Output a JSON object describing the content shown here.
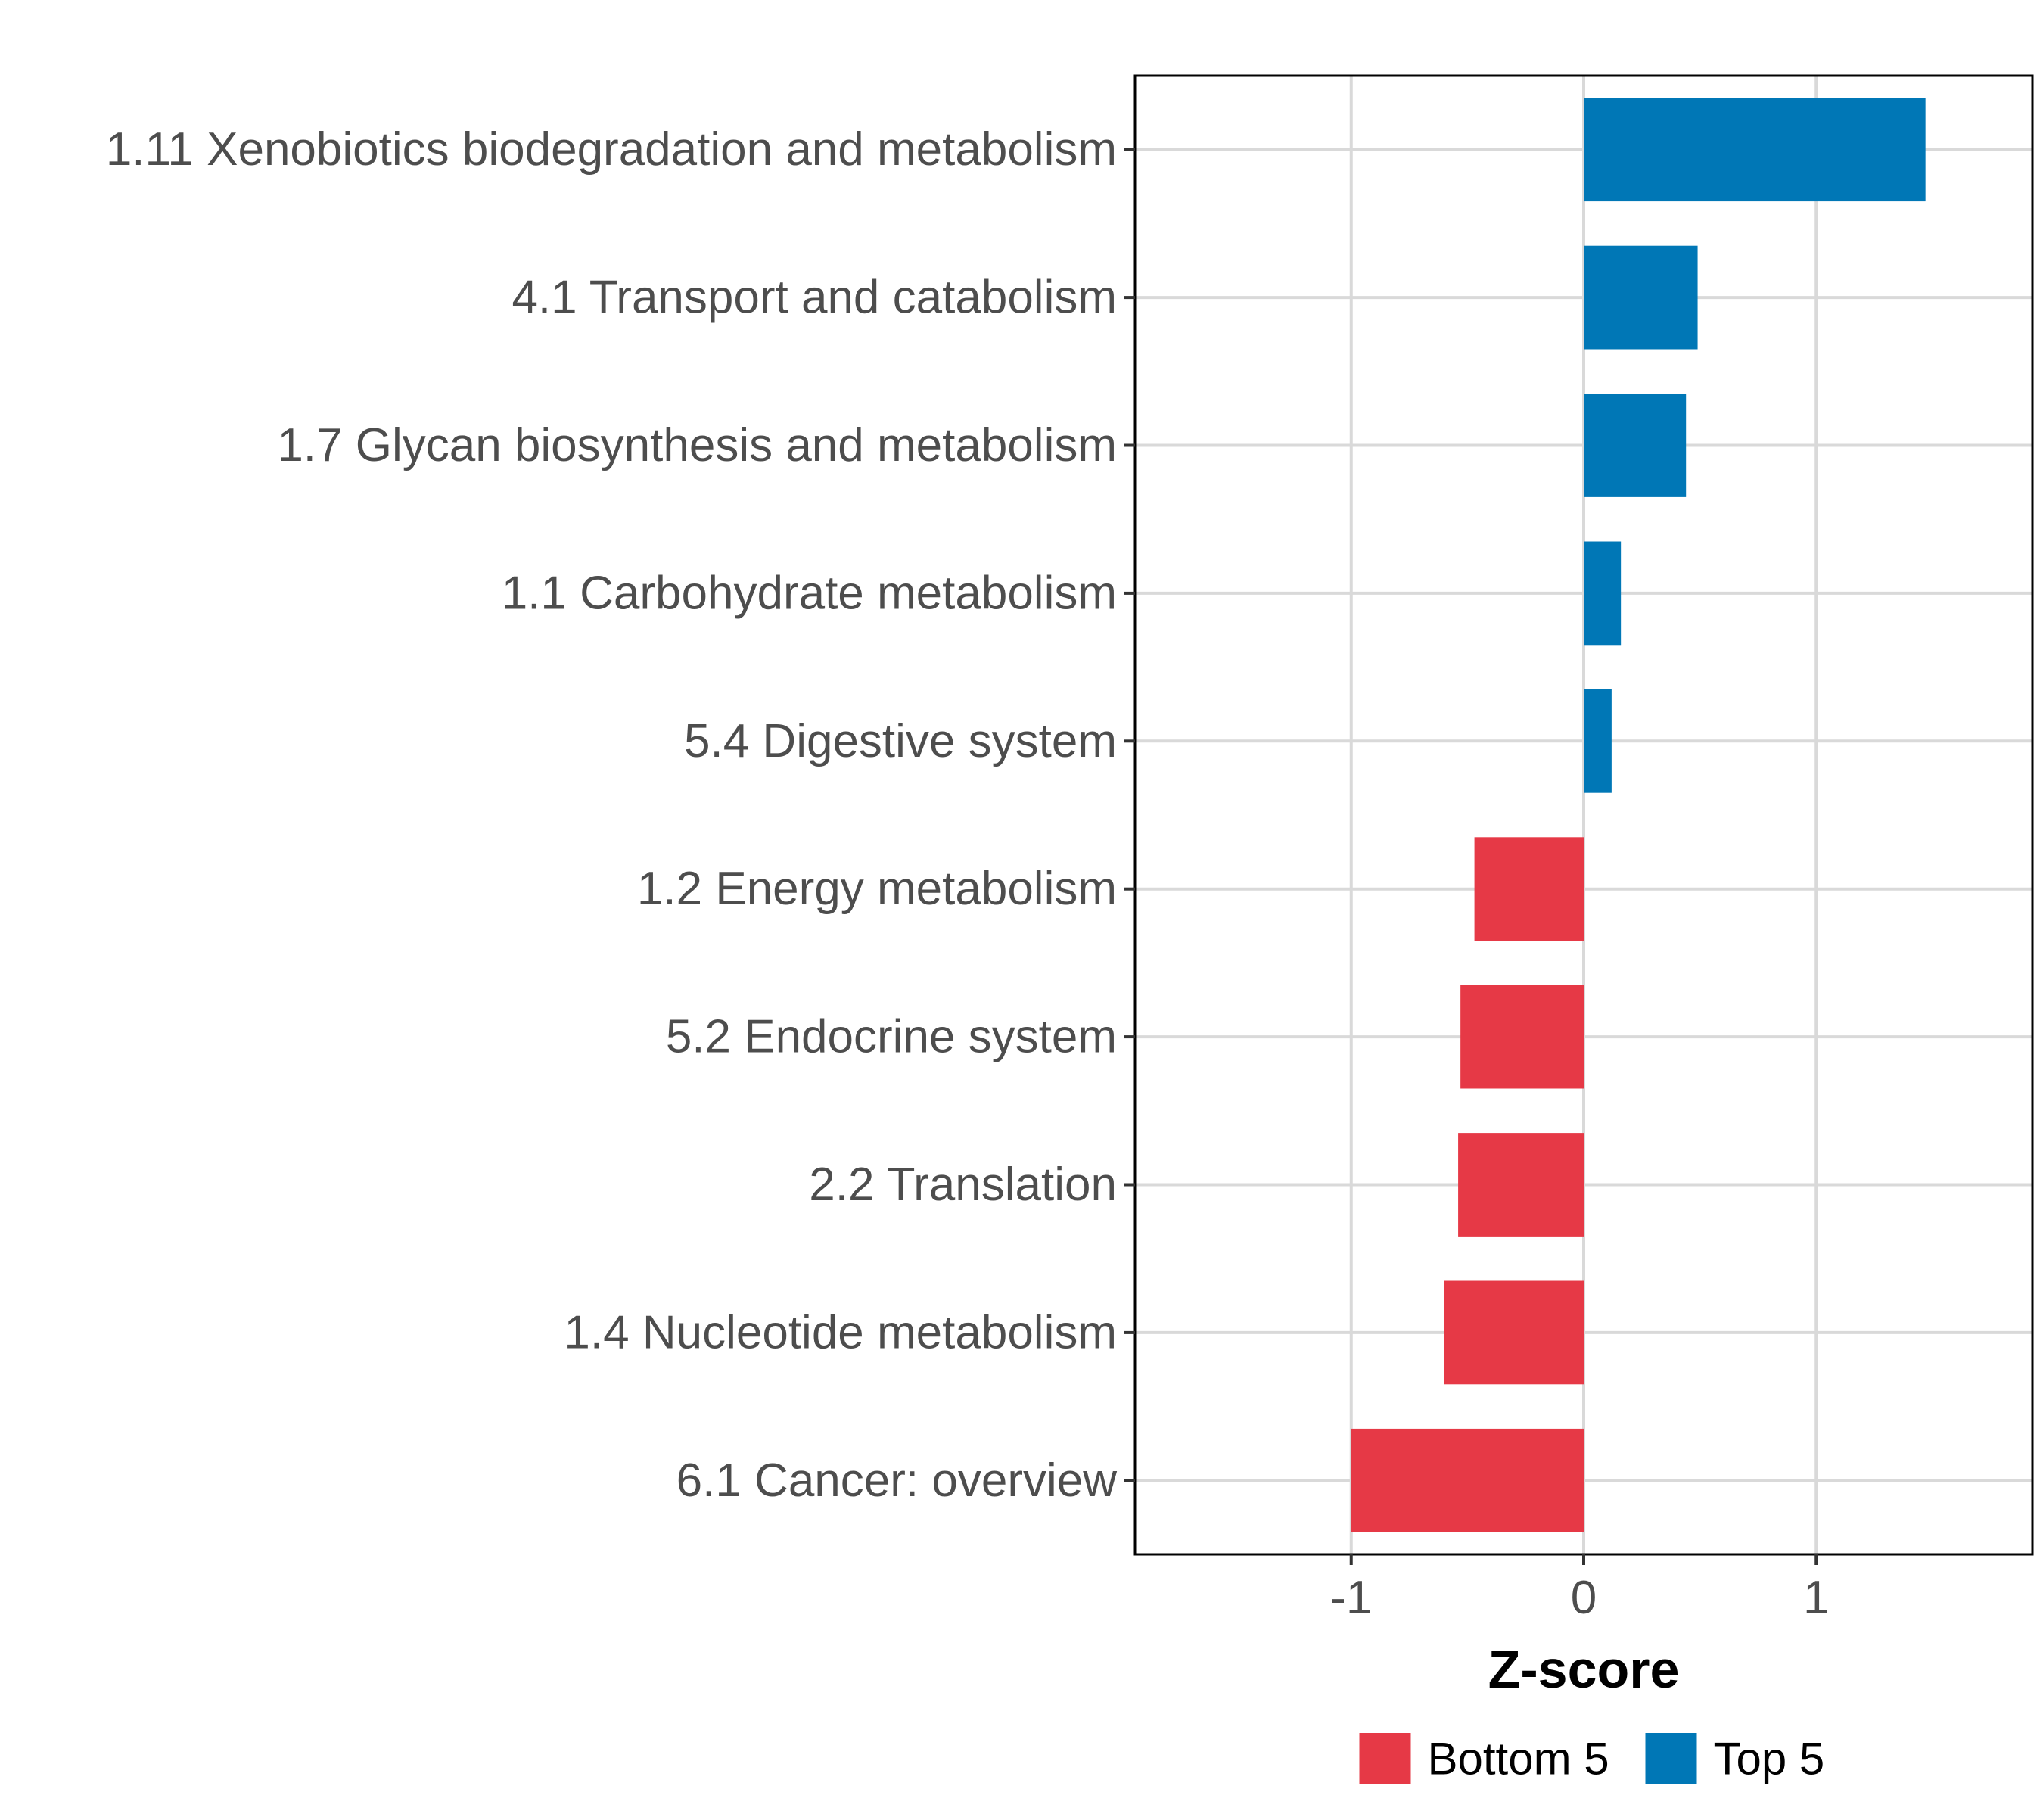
{
  "chart_data": {
    "type": "bar",
    "orientation": "horizontal",
    "categories": [
      "1.11 Xenobiotics biodegradation and metabolism",
      "4.1 Transport and catabolism",
      "1.7 Glycan biosynthesis and metabolism",
      "1.1 Carbohydrate metabolism",
      "5.4 Digestive system",
      "1.2 Energy metabolism",
      "5.2 Endocrine system",
      "2.2 Translation",
      "1.4 Nucleotide metabolism",
      "6.1 Cancer: overview"
    ],
    "values": [
      1.47,
      0.49,
      0.44,
      0.16,
      0.12,
      -0.47,
      -0.53,
      -0.54,
      -0.6,
      -1.0
    ],
    "groups": [
      "Top 5",
      "Top 5",
      "Top 5",
      "Top 5",
      "Top 5",
      "Bottom 5",
      "Bottom 5",
      "Bottom 5",
      "Bottom 5",
      "Bottom 5"
    ],
    "xlabel": "Z-score",
    "ylabel": "",
    "xlim": [
      -1.93,
      1.93
    ],
    "xticks": [
      -1,
      0,
      1
    ],
    "xtick_labels": [
      "-1",
      "0",
      "1"
    ],
    "grid": true,
    "legend": {
      "position": "bottom",
      "entries": [
        {
          "label": "Bottom 5",
          "color": "#e63946"
        },
        {
          "label": "Top 5",
          "color": "#0077b6"
        }
      ]
    },
    "colors": {
      "Top 5": "#0077b6",
      "Bottom 5": "#e63946",
      "grid": "#d9d9d9",
      "axis_text": "#4d4d4d",
      "title_text": "#000000"
    }
  }
}
